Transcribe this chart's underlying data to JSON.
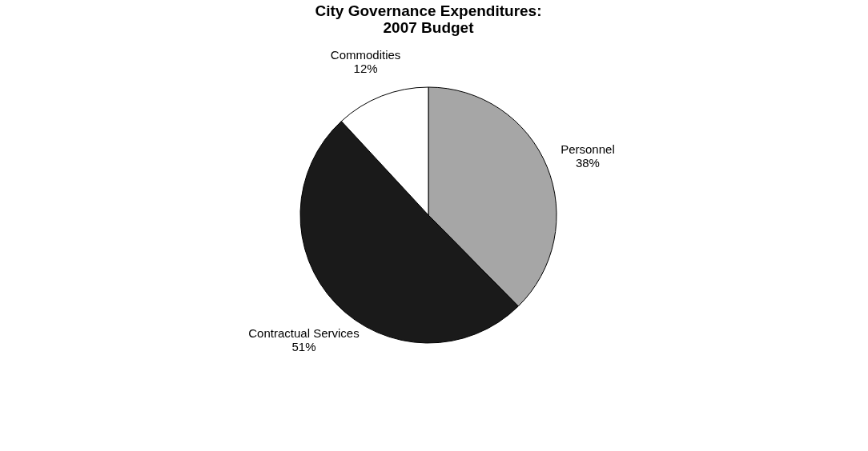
{
  "chart_data": {
    "type": "pie",
    "title": [
      "City Governance Expenditures:",
      "2007 Budget"
    ],
    "categories": [
      "Personnel",
      "Contractual Services",
      "Commodities"
    ],
    "values": [
      38,
      51,
      12
    ],
    "value_labels": [
      "38%",
      "51%",
      "12%"
    ],
    "colors": [
      "#a6a6a6",
      "#1a1a1a",
      "#ffffff"
    ],
    "legend": false
  }
}
